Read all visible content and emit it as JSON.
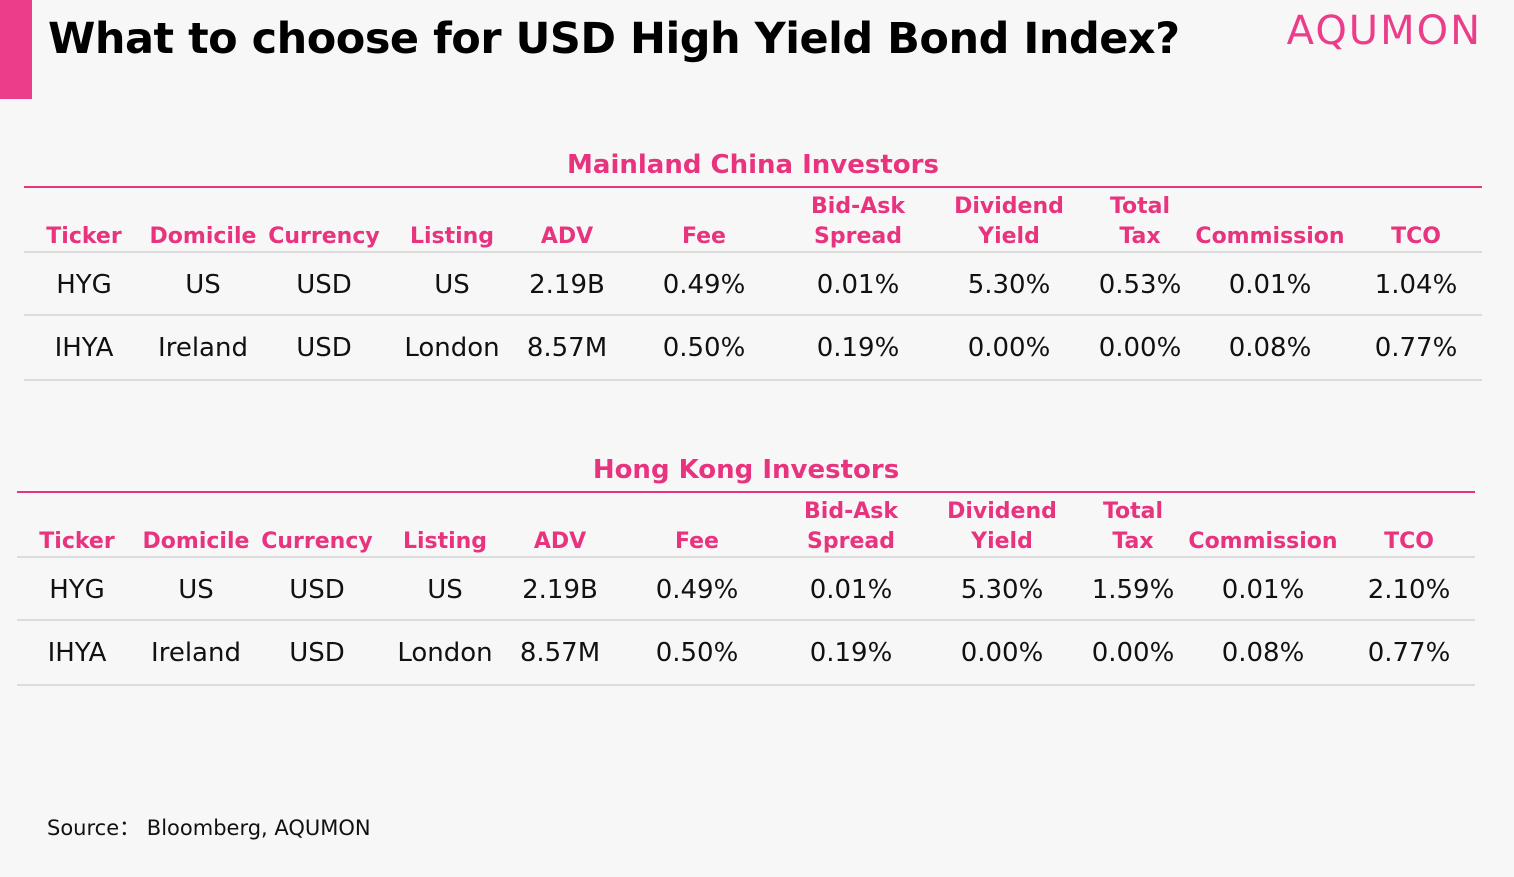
{
  "header": {
    "title": "What to choose for USD High Yield Bond Index?",
    "logo": "AQUMON",
    "accent_color": "#ec3d8a"
  },
  "columns": [
    {
      "line1": "",
      "line2": "Ticker"
    },
    {
      "line1": "",
      "line2": "Domicile"
    },
    {
      "line1": "",
      "line2": "Currency"
    },
    {
      "line1": "",
      "line2": "Listing"
    },
    {
      "line1": "",
      "line2": "ADV"
    },
    {
      "line1": "",
      "line2": "Fee"
    },
    {
      "line1": "Bid-Ask",
      "line2": "Spread"
    },
    {
      "line1": "Dividend",
      "line2": "Yield"
    },
    {
      "line1": "Total",
      "line2": "Tax"
    },
    {
      "line1": "",
      "line2": "Commission"
    },
    {
      "line1": "",
      "line2": "TCO"
    }
  ],
  "tables": [
    {
      "title": "Mainland China Investors",
      "rows": [
        [
          "HYG",
          "US",
          "USD",
          "US",
          "2.19B",
          "0.49%",
          "0.01%",
          "5.30%",
          "0.53%",
          "0.01%",
          "1.04%"
        ],
        [
          "IHYA",
          "Ireland",
          "USD",
          "London",
          "8.57M",
          "0.50%",
          "0.19%",
          "0.00%",
          "0.00%",
          "0.08%",
          "0.77%"
        ]
      ]
    },
    {
      "title": "Hong Kong Investors",
      "rows": [
        [
          "HYG",
          "US",
          "USD",
          "US",
          "2.19B",
          "0.49%",
          "0.01%",
          "5.30%",
          "1.59%",
          "0.01%",
          "2.10%"
        ],
        [
          "IHYA",
          "Ireland",
          "USD",
          "London",
          "8.57M",
          "0.50%",
          "0.19%",
          "0.00%",
          "0.00%",
          "0.08%",
          "0.77%"
        ]
      ]
    }
  ],
  "footer": {
    "source": "Source： Bloomberg, AQUMON"
  }
}
